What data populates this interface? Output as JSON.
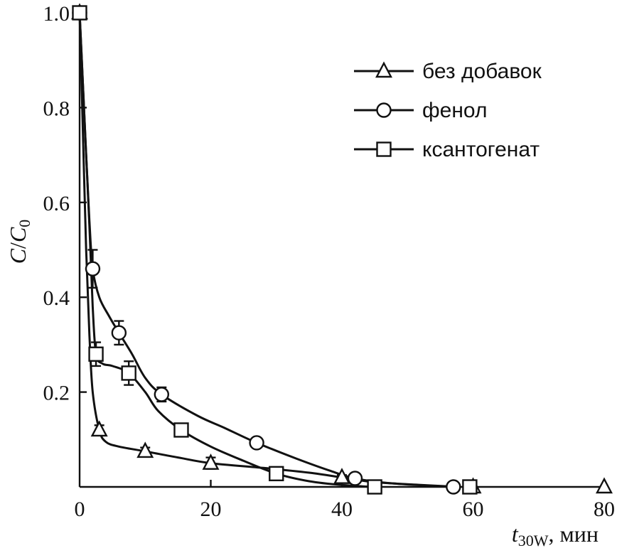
{
  "chart_data": {
    "type": "line",
    "xlabel": {
      "var": "t",
      "sub": "30W",
      "unit": ", мин"
    },
    "ylabel": {
      "num": "C",
      "den": "C",
      "den_sub": "0"
    },
    "xlim": [
      0,
      80
    ],
    "ylim": [
      0,
      1.0
    ],
    "x_ticks": [
      0,
      20,
      40,
      60,
      80
    ],
    "x_tick_labels": [
      "0",
      "20",
      "40",
      "60",
      "80"
    ],
    "y_ticks": [
      0.2,
      0.4,
      0.6,
      0.8,
      1.0
    ],
    "y_tick_labels": [
      "0.2",
      "0.4",
      "0.6",
      "0.8",
      "1.0"
    ],
    "grid": false,
    "legend_position": "top-right",
    "series": [
      {
        "name": "без добавок",
        "marker": "triangle",
        "points": [
          {
            "x": 0,
            "y": 1.0
          },
          {
            "x": 3,
            "y": 0.12,
            "err": 0.01
          },
          {
            "x": 10,
            "y": 0.075,
            "err": 0.008
          },
          {
            "x": 20,
            "y": 0.05,
            "err": 0.012
          },
          {
            "x": 40,
            "y": 0.02,
            "err": 0.005
          },
          {
            "x": 60,
            "y": 0.0
          },
          {
            "x": 80,
            "y": 0.0
          }
        ],
        "curve": [
          [
            0,
            1.0
          ],
          [
            0.5,
            0.75
          ],
          [
            1,
            0.5
          ],
          [
            1.5,
            0.32
          ],
          [
            2,
            0.2
          ],
          [
            3,
            0.12
          ],
          [
            4,
            0.095
          ],
          [
            6,
            0.085
          ],
          [
            10,
            0.075
          ],
          [
            15,
            0.062
          ],
          [
            20,
            0.05
          ],
          [
            28,
            0.04
          ],
          [
            35,
            0.03
          ],
          [
            40,
            0.02
          ],
          [
            45,
            0.01
          ],
          [
            52,
            0.004
          ],
          [
            58,
            0.0
          ]
        ]
      },
      {
        "name": "фенол",
        "marker": "circle",
        "points": [
          {
            "x": 0,
            "y": 1.0
          },
          {
            "x": 2,
            "y": 0.46,
            "err": 0.04
          },
          {
            "x": 6,
            "y": 0.325,
            "err": 0.025
          },
          {
            "x": 12.5,
            "y": 0.195,
            "err": 0.015
          },
          {
            "x": 27,
            "y": 0.093,
            "err": 0.01
          },
          {
            "x": 42,
            "y": 0.018,
            "err": 0.005
          },
          {
            "x": 57,
            "y": 0.0
          }
        ],
        "curve": [
          [
            0,
            1.0
          ],
          [
            0.5,
            0.85
          ],
          [
            1,
            0.7
          ],
          [
            1.5,
            0.56
          ],
          [
            2,
            0.46
          ],
          [
            3,
            0.4
          ],
          [
            4.5,
            0.36
          ],
          [
            6,
            0.325
          ],
          [
            8,
            0.28
          ],
          [
            10,
            0.23
          ],
          [
            12.5,
            0.195
          ],
          [
            18,
            0.15
          ],
          [
            22,
            0.125
          ],
          [
            27,
            0.093
          ],
          [
            33,
            0.06
          ],
          [
            38,
            0.035
          ],
          [
            42,
            0.018
          ],
          [
            48,
            0.007
          ],
          [
            57,
            0.0
          ]
        ]
      },
      {
        "name": "ксантогенат",
        "marker": "square",
        "points": [
          {
            "x": 0,
            "y": 1.0
          },
          {
            "x": 2.5,
            "y": 0.28,
            "err": 0.025
          },
          {
            "x": 7.5,
            "y": 0.24,
            "err": 0.025
          },
          {
            "x": 15.5,
            "y": 0.12,
            "err": 0.01
          },
          {
            "x": 30,
            "y": 0.028,
            "err": 0.006
          },
          {
            "x": 45,
            "y": 0.0
          },
          {
            "x": 59.5,
            "y": 0.0
          }
        ],
        "curve": [
          [
            0,
            1.0
          ],
          [
            0.5,
            0.85
          ],
          [
            1,
            0.7
          ],
          [
            1.5,
            0.55
          ],
          [
            2,
            0.38
          ],
          [
            2.5,
            0.28
          ],
          [
            3.5,
            0.26
          ],
          [
            5,
            0.255
          ],
          [
            7.5,
            0.24
          ],
          [
            10,
            0.2
          ],
          [
            12,
            0.16
          ],
          [
            15.5,
            0.12
          ],
          [
            20,
            0.085
          ],
          [
            25,
            0.055
          ],
          [
            30,
            0.028
          ],
          [
            35,
            0.012
          ],
          [
            40,
            0.004
          ],
          [
            45,
            0.0
          ]
        ]
      }
    ]
  }
}
